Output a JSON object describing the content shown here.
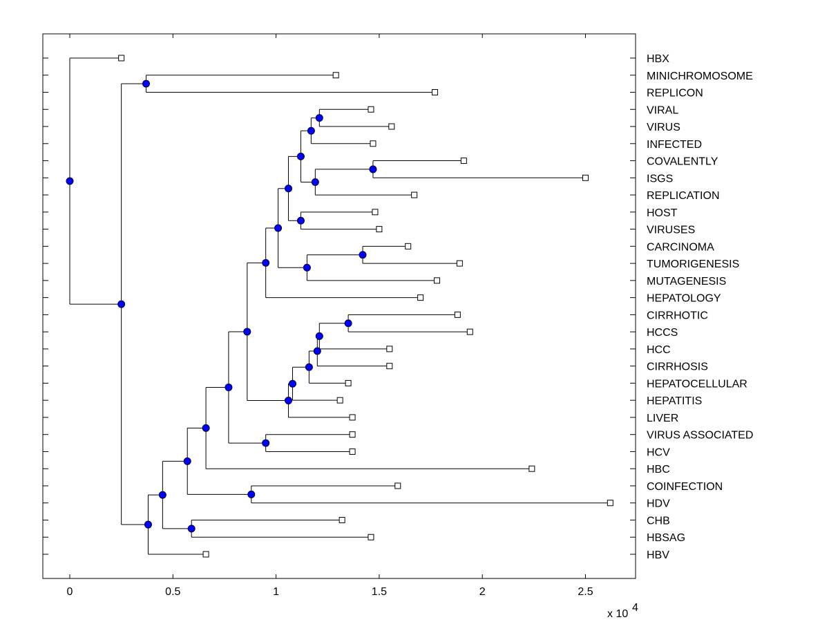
{
  "chart_data": {
    "type": "dendrogram",
    "title": "",
    "xlabel": "",
    "ylabel": "",
    "x_multiplier_label": "x 10",
    "x_multiplier_exponent": "4",
    "xlim": [
      -0.13,
      2.75
    ],
    "x_ticks": [
      0,
      0.5,
      1,
      1.5,
      2,
      2.5
    ],
    "x_tick_labels": [
      "0",
      "0.5",
      "1",
      "1.5",
      "2",
      "2.5"
    ],
    "grid": false,
    "colors": {
      "internal_node": "#0000ff",
      "leaf_node": "#ffffff",
      "line": "#000000"
    },
    "leaves": [
      {
        "label": "HBX",
        "x": 0.25
      },
      {
        "label": "MINICHROMOSOME",
        "x": 1.29
      },
      {
        "label": "REPLICON",
        "x": 1.77
      },
      {
        "label": "VIRAL",
        "x": 1.46
      },
      {
        "label": "VIRUS",
        "x": 1.56
      },
      {
        "label": "INFECTED",
        "x": 1.47
      },
      {
        "label": "COVALENTLY",
        "x": 1.91
      },
      {
        "label": "ISGS",
        "x": 2.5
      },
      {
        "label": "REPLICATION",
        "x": 1.67
      },
      {
        "label": "HOST",
        "x": 1.48
      },
      {
        "label": "VIRUSES",
        "x": 1.5
      },
      {
        "label": "CARCINOMA",
        "x": 1.64
      },
      {
        "label": "TUMORIGENESIS",
        "x": 1.89
      },
      {
        "label": "MUTAGENESIS",
        "x": 1.78
      },
      {
        "label": "HEPATOLOGY",
        "x": 1.7
      },
      {
        "label": "CIRRHOTIC",
        "x": 1.88
      },
      {
        "label": "HCCS",
        "x": 1.94
      },
      {
        "label": "HCC",
        "x": 1.55
      },
      {
        "label": "CIRRHOSIS",
        "x": 1.55
      },
      {
        "label": "HEPATOCELLULAR",
        "x": 1.35
      },
      {
        "label": "HEPATITIS",
        "x": 1.31
      },
      {
        "label": "LIVER",
        "x": 1.37
      },
      {
        "label": "VIRUS ASSOCIATED",
        "x": 1.37
      },
      {
        "label": "HCV",
        "x": 1.37
      },
      {
        "label": "HBC",
        "x": 2.24
      },
      {
        "label": "COINFECTION",
        "x": 1.59
      },
      {
        "label": "HDV",
        "x": 2.62
      },
      {
        "label": "CHB",
        "x": 1.32
      },
      {
        "label": "HBSAG",
        "x": 1.46
      },
      {
        "label": "HBV",
        "x": 0.66
      }
    ],
    "internal_nodes": [
      {
        "id": "n1",
        "x": 0.37,
        "children": [
          "L1",
          "L2"
        ]
      },
      {
        "id": "n2",
        "x": 1.21,
        "children": [
          "L3",
          "L4"
        ]
      },
      {
        "id": "n3",
        "x": 1.17,
        "children": [
          "n2",
          "L5"
        ]
      },
      {
        "id": "n4",
        "x": 1.47,
        "children": [
          "L6",
          "L7"
        ]
      },
      {
        "id": "n5",
        "x": 1.19,
        "children": [
          "n4",
          "L8"
        ]
      },
      {
        "id": "n6",
        "x": 1.12,
        "children": [
          "n3",
          "n5"
        ]
      },
      {
        "id": "n7",
        "x": 1.12,
        "children": [
          "L9",
          "L10"
        ]
      },
      {
        "id": "n8",
        "x": 1.06,
        "children": [
          "n6",
          "n7"
        ]
      },
      {
        "id": "n9",
        "x": 1.42,
        "children": [
          "L11",
          "L12"
        ]
      },
      {
        "id": "n10",
        "x": 1.15,
        "children": [
          "n9",
          "L13"
        ]
      },
      {
        "id": "n11",
        "x": 1.01,
        "children": [
          "n8",
          "n10"
        ]
      },
      {
        "id": "n12",
        "x": 0.95,
        "children": [
          "n11",
          "L14"
        ]
      },
      {
        "id": "n13",
        "x": 1.35,
        "children": [
          "L15",
          "L16"
        ]
      },
      {
        "id": "n14",
        "x": 1.21,
        "children": [
          "n13",
          "L17"
        ]
      },
      {
        "id": "n15",
        "x": 1.2,
        "children": [
          "n14",
          "L18"
        ]
      },
      {
        "id": "n16",
        "x": 1.16,
        "children": [
          "n15",
          "L19"
        ]
      },
      {
        "id": "n17",
        "x": 1.08,
        "children": [
          "n16",
          "L20"
        ]
      },
      {
        "id": "n18",
        "x": 1.06,
        "children": [
          "n17",
          "L21"
        ]
      },
      {
        "id": "n19",
        "x": 0.86,
        "children": [
          "n12",
          "n18"
        ]
      },
      {
        "id": "n20",
        "x": 0.95,
        "children": [
          "L22",
          "L23"
        ]
      },
      {
        "id": "n21",
        "x": 0.77,
        "children": [
          "n19",
          "n20"
        ]
      },
      {
        "id": "n22",
        "x": 0.66,
        "children": [
          "n21",
          "L24"
        ]
      },
      {
        "id": "n23",
        "x": 0.88,
        "children": [
          "L25",
          "L26"
        ]
      },
      {
        "id": "n24",
        "x": 0.57,
        "children": [
          "n22",
          "n23"
        ]
      },
      {
        "id": "n25",
        "x": 0.59,
        "children": [
          "L27",
          "L28"
        ]
      },
      {
        "id": "n26",
        "x": 0.45,
        "children": [
          "n24",
          "n25"
        ]
      },
      {
        "id": "n27",
        "x": 0.38,
        "children": [
          "n26",
          "L29"
        ]
      },
      {
        "id": "n28",
        "x": 0.25,
        "children": [
          "n1",
          "n27"
        ]
      },
      {
        "id": "n29",
        "x": 0.0,
        "children": [
          "L0",
          "n28"
        ]
      }
    ]
  }
}
